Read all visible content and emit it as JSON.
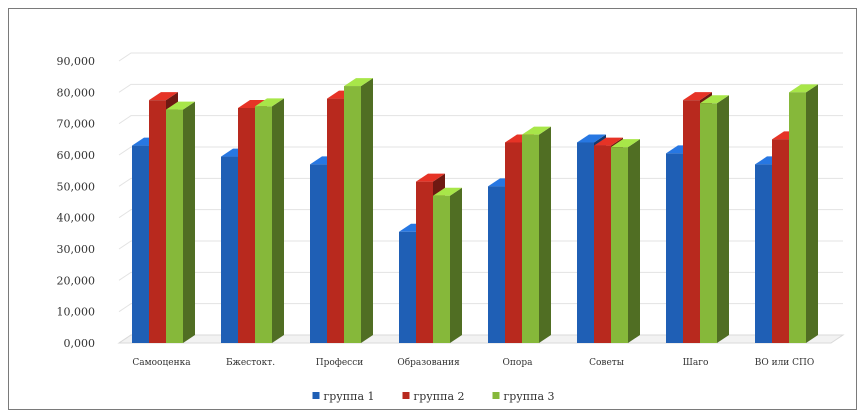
{
  "chart_data": {
    "type": "bar",
    "style": "3d-clustered-column",
    "categories": [
      "Самооценка",
      "Бжестокт.",
      "Професси",
      "Образования",
      "Опора",
      "Советы",
      "Шаго",
      "ВО или СПО"
    ],
    "series": [
      {
        "name": "группа 1",
        "color": "#1f5fb5",
        "values": [
          63,
          59.5,
          57,
          35.5,
          50,
          64,
          60.5,
          57
        ]
      },
      {
        "name": "группа 2",
        "color": "#b8291e",
        "values": [
          77.5,
          75,
          78,
          51.5,
          64,
          63,
          77.5,
          65
        ]
      },
      {
        "name": "группа 3",
        "color": "#86b83a",
        "values": [
          74.5,
          75.5,
          82,
          47,
          66.5,
          62.5,
          76.5,
          80
        ]
      }
    ],
    "yticks": [
      "0,000",
      "10,000",
      "20,000",
      "30,000",
      "40,000",
      "50,000",
      "60,000",
      "70,000",
      "80,000",
      "90,000"
    ],
    "ylim": [
      0,
      90
    ],
    "grid": true,
    "legend_position": "bottom"
  }
}
